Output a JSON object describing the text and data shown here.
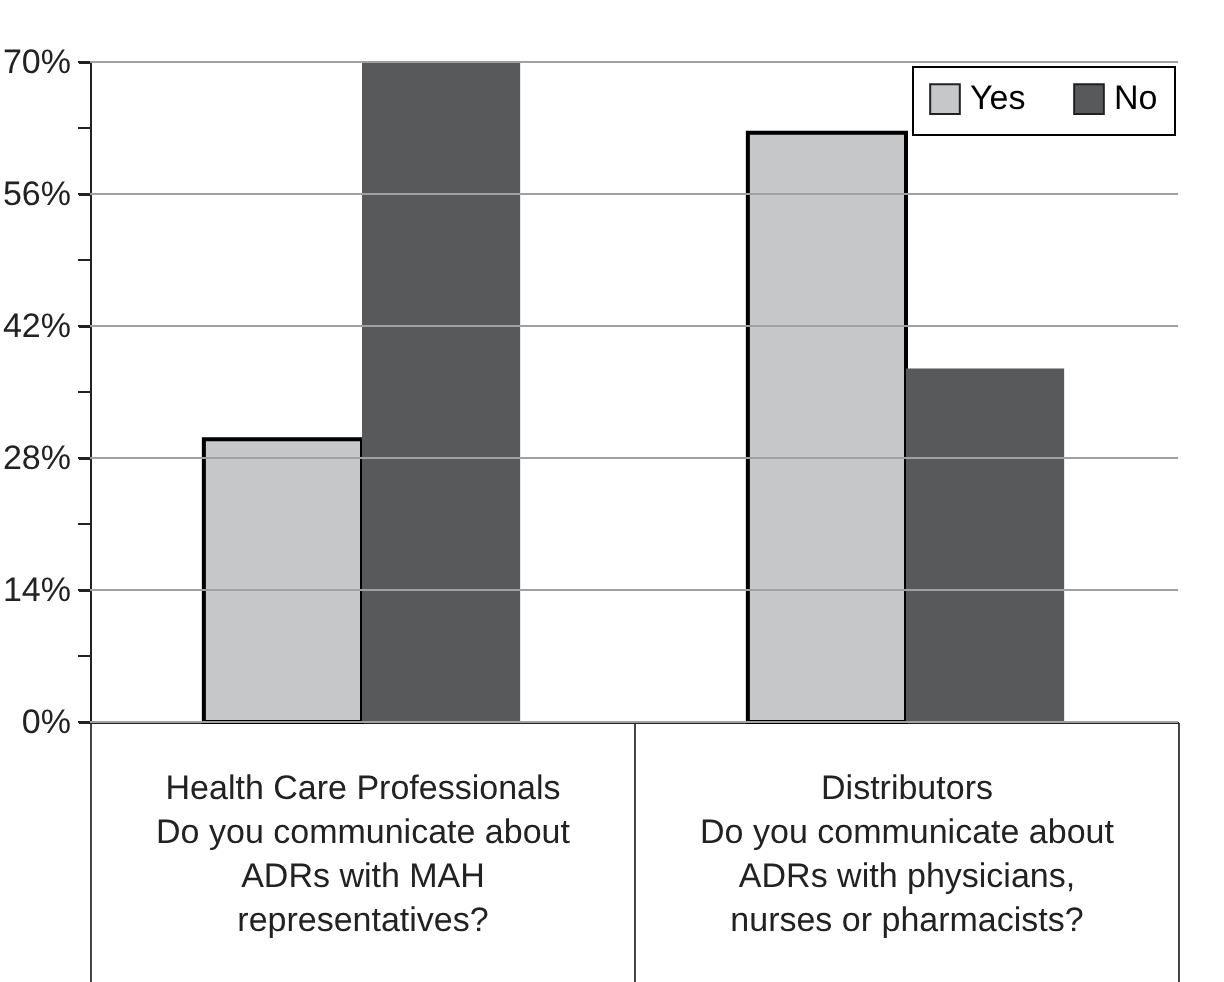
{
  "chart_data": {
    "type": "bar",
    "categories": [
      "Health Care Professionals\n\nDo you communicate about\nADRs with MAH\nrepresentatives?",
      "Distributors\n\nDo you communicate about\nADRs with physicians,\nnurses or pharmacists?"
    ],
    "series": [
      {
        "name": "Yes",
        "color": "#c6c7c9",
        "values": [
          30,
          62.5
        ]
      },
      {
        "name": "No",
        "color": "#58595b",
        "values": [
          70,
          37.5
        ]
      }
    ],
    "ylim": [
      0,
      70
    ],
    "yticks": [
      {
        "value": 0,
        "label": "0%"
      },
      {
        "value": 7,
        "label": null
      },
      {
        "value": 14,
        "label": "14%"
      },
      {
        "value": 21,
        "label": null
      },
      {
        "value": 28,
        "label": "28%"
      },
      {
        "value": 35,
        "label": null
      },
      {
        "value": 42,
        "label": "42%"
      },
      {
        "value": 49,
        "label": null
      },
      {
        "value": 56,
        "label": "56%"
      },
      {
        "value": 63,
        "label": null
      },
      {
        "value": 70,
        "label": "70%"
      }
    ],
    "grid": "y",
    "legend": "top right"
  }
}
